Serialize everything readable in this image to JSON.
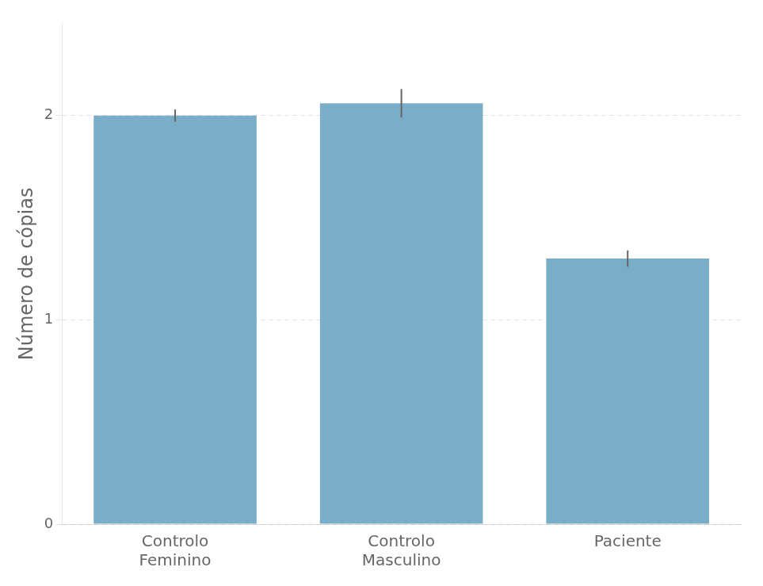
{
  "chart_data": {
    "type": "bar",
    "categories": [
      "Controlo\nFeminino",
      "Controlo\nMasculino",
      "Paciente"
    ],
    "values": [
      2.0,
      2.06,
      1.3
    ],
    "errors": [
      0.03,
      0.07,
      0.04
    ],
    "color": "#7aaec8",
    "ylabel": "Número de cópias",
    "ylim": [
      0,
      2.45
    ],
    "yticks": [
      0,
      1,
      2
    ],
    "grid": true
  }
}
